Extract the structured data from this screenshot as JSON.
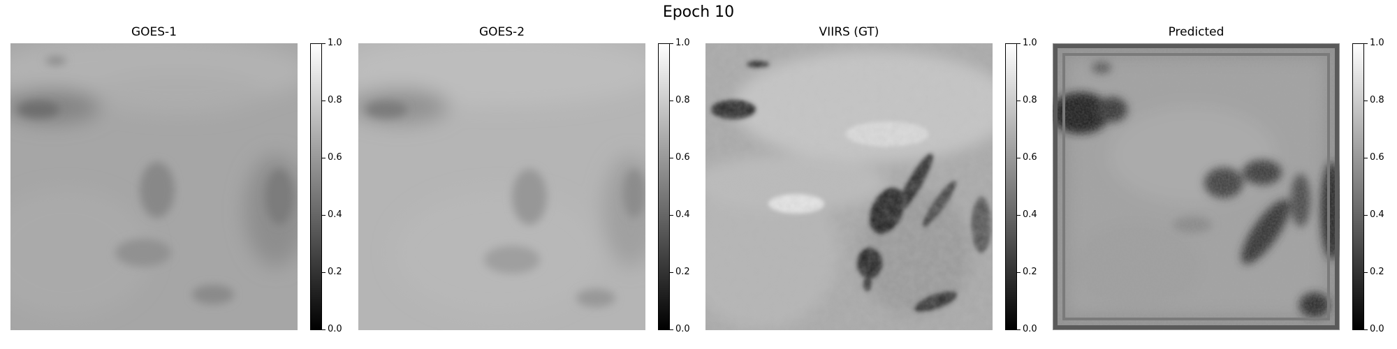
{
  "figure": {
    "title": "Epoch 10"
  },
  "panels": [
    {
      "id": "goes1",
      "title": "GOES-1",
      "image": "goes-1-grayscale-cloud-image"
    },
    {
      "id": "goes2",
      "title": "GOES-2",
      "image": "goes-2-grayscale-cloud-image"
    },
    {
      "id": "viirs",
      "title": "VIIRS (GT)",
      "image": "viirs-ground-truth-grayscale-image"
    },
    {
      "id": "pred",
      "title": "Predicted",
      "image": "predicted-grayscale-image"
    }
  ],
  "colorbar": {
    "colormap": "gray",
    "range": [
      0.0,
      1.0
    ],
    "ticks": [
      "0.0",
      "0.2",
      "0.4",
      "0.6",
      "0.8",
      "1.0"
    ]
  }
}
